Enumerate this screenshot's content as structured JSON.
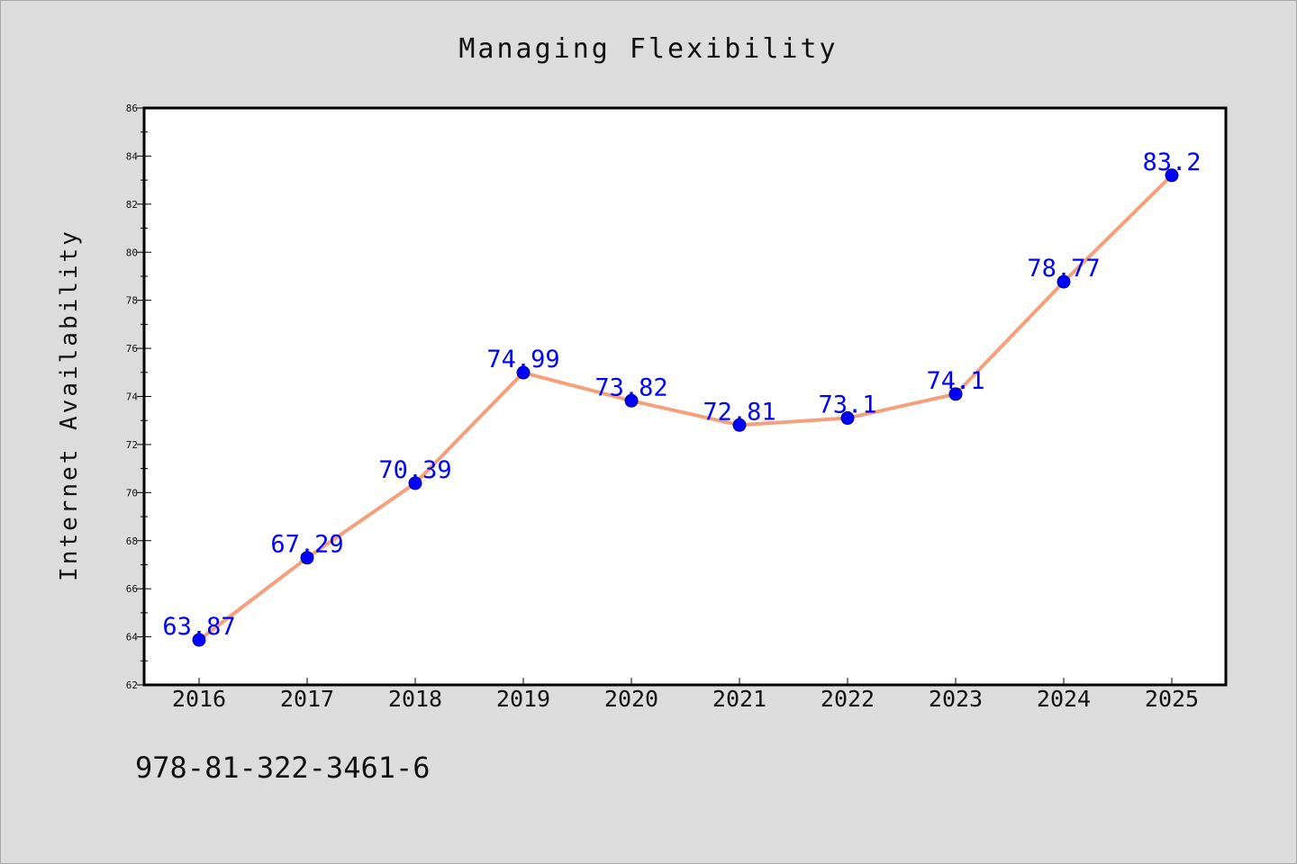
{
  "chart_data": {
    "type": "line",
    "title": "Managing Flexibility",
    "xlabel": "",
    "ylabel": "Internet Availability",
    "categories": [
      "2016",
      "2017",
      "2018",
      "2019",
      "2020",
      "2021",
      "2022",
      "2023",
      "2024",
      "2025"
    ],
    "series": [
      {
        "values": [
          63.87,
          67.29,
          70.39,
          74.99,
          73.82,
          72.81,
          73.1,
          74.1,
          78.77,
          83.2
        ],
        "labels": [
          "63.87",
          "67.29",
          "70.39",
          "74.99",
          "73.82",
          "72.81",
          "73.1",
          "74.1",
          "78.77",
          "83.2"
        ],
        "line_color": "#f5a07a",
        "marker_color": "#0000ff"
      }
    ],
    "ylim": [
      62,
      86
    ],
    "yticks": [
      "62",
      "64",
      "66",
      "68",
      "70",
      "72",
      "74",
      "76",
      "78",
      "80",
      "82",
      "84",
      "86"
    ],
    "grid": false,
    "legend": "none"
  },
  "footer_text": "978-81-322-3461-6",
  "colors": {
    "background": "#dcdcdc",
    "plot_background": "#ffffff",
    "line": "#f5a07a",
    "marker": "#0000ff",
    "data_label": "#0000ff"
  }
}
